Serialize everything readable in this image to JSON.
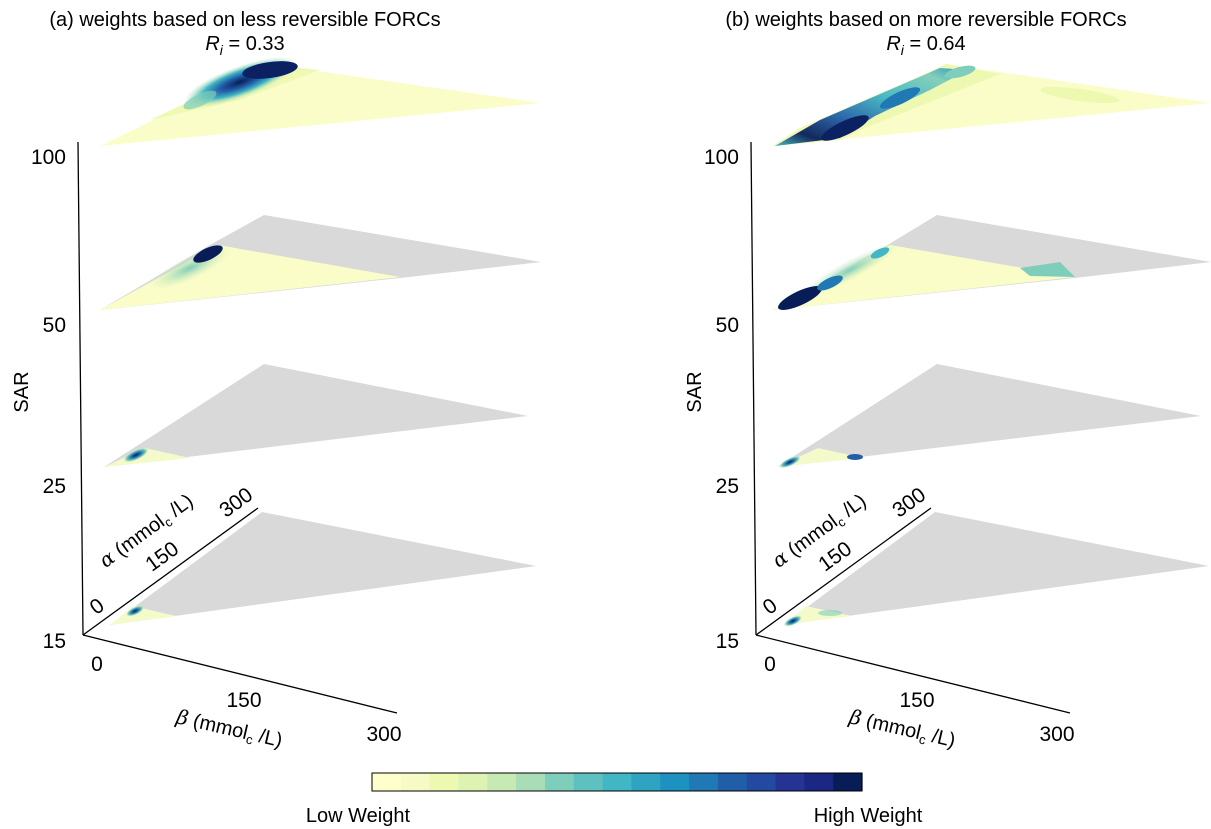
{
  "colors": {
    "background": "#ffffff",
    "plane_gray": "#d9d9d9",
    "colormap": [
      "#ffffcc",
      "#f6fbc5",
      "#edf8b1",
      "#def3b2",
      "#c7e9b4",
      "#a9ddb7",
      "#7fcdbb",
      "#5fc0c0",
      "#41b6c4",
      "#2ea3c2",
      "#1d91c0",
      "#2079b4",
      "#225ea8",
      "#2349a0",
      "#253494",
      "#1c2783",
      "#081d58"
    ]
  },
  "chart_data": [
    {
      "type": "3d-stacked-contour",
      "panel": "a",
      "title": "(a) weights based on less reversible FORCs",
      "subtitle_var": "R",
      "subtitle_sub": "i",
      "subtitle_rest": " = 0.33",
      "zlabel": "SAR",
      "z_ticks": [
        "15",
        "25",
        "50",
        "100"
      ],
      "x_label_symbol": "β",
      "x_label_unit_pre": " (mmol",
      "x_label_unit_sub": "c",
      "x_label_unit_post": " /L)",
      "x_ticks": [
        "0",
        "150",
        "300"
      ],
      "y_label_symbol": "α",
      "y_label_unit_pre": " (mmol",
      "y_label_unit_sub": "c",
      "y_label_unit_post": " /L)",
      "y_ticks": [
        "0",
        "150",
        "300"
      ],
      "layers": [
        {
          "SAR": 15,
          "data_extent_fraction": 0.22,
          "max_weight_location": "near origin"
        },
        {
          "SAR": 25,
          "data_extent_fraction": 0.22,
          "max_weight_location": "near origin"
        },
        {
          "SAR": 50,
          "data_extent_fraction": 0.66,
          "max_weight_location": "high alpha, low beta"
        },
        {
          "SAR": 100,
          "data_extent_fraction": 1.0,
          "max_weight_location": "high alpha, low beta"
        }
      ]
    },
    {
      "type": "3d-stacked-contour",
      "panel": "b",
      "title": "(b) weights based on more reversible FORCs",
      "subtitle_var": "R",
      "subtitle_sub": "i",
      "subtitle_rest": " = 0.64",
      "zlabel": "SAR",
      "z_ticks": [
        "15",
        "25",
        "50",
        "100"
      ],
      "x_label_symbol": "β",
      "x_label_unit_pre": " (mmol",
      "x_label_unit_sub": "c",
      "x_label_unit_post": " /L)",
      "x_ticks": [
        "0",
        "150",
        "300"
      ],
      "y_label_symbol": "α",
      "y_label_unit_pre": " (mmol",
      "y_label_unit_sub": "c",
      "y_label_unit_post": " /L)",
      "y_ticks": [
        "0",
        "150",
        "300"
      ],
      "layers": [
        {
          "SAR": 15,
          "data_extent_fraction": 0.22,
          "max_weight_location": "near origin"
        },
        {
          "SAR": 25,
          "data_extent_fraction": 0.22,
          "max_weight_location": "near origin"
        },
        {
          "SAR": 50,
          "data_extent_fraction": 0.66,
          "max_weight_location": "low alpha, low beta"
        },
        {
          "SAR": 100,
          "data_extent_fraction": 1.0,
          "max_weight_location": "band along alpha = beta"
        }
      ]
    }
  ],
  "colorbar": {
    "low_label": "Low Weight",
    "high_label": "High Weight",
    "n_levels": 17
  }
}
